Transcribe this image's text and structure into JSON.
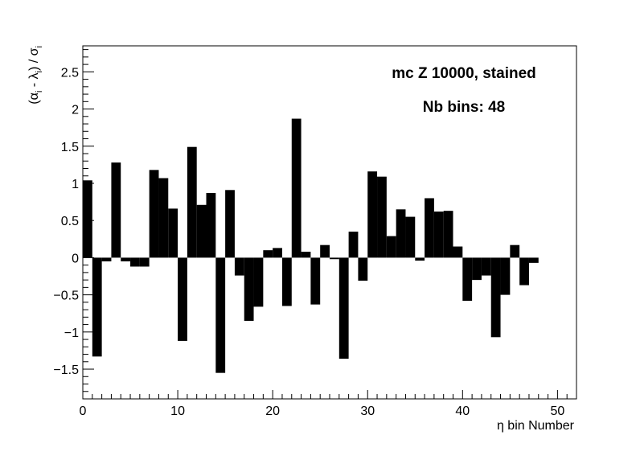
{
  "chart_data": {
    "type": "bar",
    "xlabel": "η bin Number",
    "ylabel": {
      "open": "(α",
      "sub1": "i",
      "mid": " - λ",
      "sub2": "i",
      "close": ") / σ",
      "sub3": "i"
    },
    "annotations": [
      "mc Z 10000, stained",
      "Nb bins: 48"
    ],
    "xlim": [
      0,
      52
    ],
    "ylim": [
      -1.9,
      2.85
    ],
    "x_ticks": [
      0,
      10,
      20,
      30,
      40,
      50
    ],
    "y_ticks": [
      -1.5,
      -1,
      -0.5,
      0,
      0.5,
      1,
      1.5,
      2,
      2.5
    ],
    "y_tick_labels": [
      "−1.5",
      "−1",
      "−0.5",
      "0",
      "0.5",
      "1",
      "1.5",
      "2",
      "2.5"
    ],
    "bin_width": 1,
    "bins": [
      {
        "x": 0,
        "value": 1.04
      },
      {
        "x": 1,
        "value": -1.33
      },
      {
        "x": 2,
        "value": -0.05
      },
      {
        "x": 3,
        "value": 1.28
      },
      {
        "x": 4,
        "value": -0.05
      },
      {
        "x": 5,
        "value": -0.12
      },
      {
        "x": 6,
        "value": -0.12
      },
      {
        "x": 7,
        "value": 1.18
      },
      {
        "x": 8,
        "value": 1.07
      },
      {
        "x": 9,
        "value": 0.66
      },
      {
        "x": 10,
        "value": -1.12
      },
      {
        "x": 11,
        "value": 1.49
      },
      {
        "x": 12,
        "value": 0.71
      },
      {
        "x": 13,
        "value": 0.87
      },
      {
        "x": 14,
        "value": -1.55
      },
      {
        "x": 15,
        "value": 0.91
      },
      {
        "x": 16,
        "value": -0.24
      },
      {
        "x": 17,
        "value": -0.85
      },
      {
        "x": 18,
        "value": -0.66
      },
      {
        "x": 19,
        "value": 0.1
      },
      {
        "x": 20,
        "value": 0.13
      },
      {
        "x": 21,
        "value": -0.65
      },
      {
        "x": 22,
        "value": 1.87
      },
      {
        "x": 23,
        "value": 0.08
      },
      {
        "x": 24,
        "value": -0.63
      },
      {
        "x": 25,
        "value": 0.17
      },
      {
        "x": 26,
        "value": -0.02
      },
      {
        "x": 27,
        "value": -1.36
      },
      {
        "x": 28,
        "value": 0.35
      },
      {
        "x": 29,
        "value": -0.31
      },
      {
        "x": 30,
        "value": 1.16
      },
      {
        "x": 31,
        "value": 1.09
      },
      {
        "x": 32,
        "value": 0.29
      },
      {
        "x": 33,
        "value": 0.65
      },
      {
        "x": 34,
        "value": 0.55
      },
      {
        "x": 35,
        "value": -0.04
      },
      {
        "x": 36,
        "value": 0.8
      },
      {
        "x": 37,
        "value": 0.62
      },
      {
        "x": 38,
        "value": 0.63
      },
      {
        "x": 39,
        "value": 0.15
      },
      {
        "x": 40,
        "value": -0.58
      },
      {
        "x": 41,
        "value": -0.3
      },
      {
        "x": 42,
        "value": -0.24
      },
      {
        "x": 43,
        "value": -1.07
      },
      {
        "x": 44,
        "value": -0.5
      },
      {
        "x": 45,
        "value": 0.17
      },
      {
        "x": 46,
        "value": -0.37
      },
      {
        "x": 47,
        "value": -0.07
      }
    ],
    "bar_color": "#000000",
    "grid": false,
    "legend": "none"
  }
}
